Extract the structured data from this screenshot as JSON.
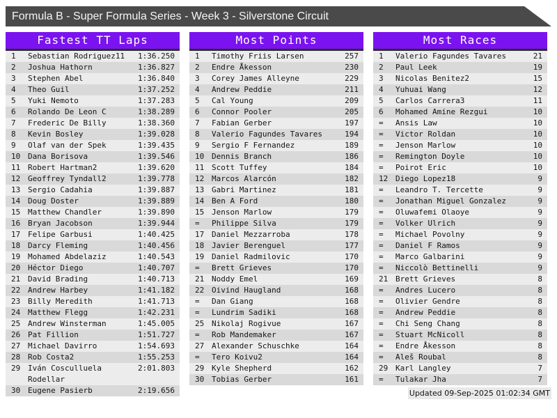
{
  "title_bar": {
    "text": "Formula B - Super Formula Series - Week 3 - Silverstone Circuit"
  },
  "colors": {
    "accent_purple": "#7b13f0",
    "titlebar_gray": "#4a4a4a",
    "header_border": "#2d2d2d",
    "row_light": "#ececec",
    "row_dark": "#d9d9d9"
  },
  "tables": [
    {
      "title": "Fastest TT Laps",
      "rows": [
        {
          "rank": "1",
          "name": "Sebastian Rodriguez11",
          "value": "1:36.250"
        },
        {
          "rank": "2",
          "name": "Joshua Hathorn",
          "value": "1:36.827"
        },
        {
          "rank": "3",
          "name": "Stephen Abel",
          "value": "1:36.840"
        },
        {
          "rank": "4",
          "name": "Theo Guil",
          "value": "1:37.252"
        },
        {
          "rank": "5",
          "name": "Yuki Nemoto",
          "value": "1:37.283"
        },
        {
          "rank": "6",
          "name": "Rolando De Leon C",
          "value": "1:38.289"
        },
        {
          "rank": "7",
          "name": "Frederic De Billy",
          "value": "1:38.360"
        },
        {
          "rank": "8",
          "name": "Kevin Bosley",
          "value": "1:39.028"
        },
        {
          "rank": "9",
          "name": "Olaf van der Spek",
          "value": "1:39.435"
        },
        {
          "rank": "10",
          "name": "Dana Borisova",
          "value": "1:39.546"
        },
        {
          "rank": "11",
          "name": "Robert Hartman2",
          "value": "1:39.620"
        },
        {
          "rank": "12",
          "name": "Geoffrey Tyndall2",
          "value": "1:39.778"
        },
        {
          "rank": "13",
          "name": "Sergio Cadahia",
          "value": "1:39.887"
        },
        {
          "rank": "14",
          "name": "Doug Doster",
          "value": "1:39.889"
        },
        {
          "rank": "15",
          "name": "Matthew Chandler",
          "value": "1:39.890"
        },
        {
          "rank": "16",
          "name": "Bryan Jacobson",
          "value": "1:39.944"
        },
        {
          "rank": "17",
          "name": "Felipe Garbusi",
          "value": "1:40.425"
        },
        {
          "rank": "18",
          "name": "Darcy Fleming",
          "value": "1:40.456"
        },
        {
          "rank": "19",
          "name": "Mohamed Abdelaziz",
          "value": "1:40.543"
        },
        {
          "rank": "20",
          "name": "Héctor Diego",
          "value": "1:40.707"
        },
        {
          "rank": "21",
          "name": "David Brading",
          "value": "1:40.713"
        },
        {
          "rank": "22",
          "name": "Andrew Harbey",
          "value": "1:41.182"
        },
        {
          "rank": "23",
          "name": "Billy Meredith",
          "value": "1:41.713"
        },
        {
          "rank": "24",
          "name": "Matthew Flegg",
          "value": "1:42.231"
        },
        {
          "rank": "25",
          "name": "Andrew Winsterman",
          "value": "1:45.005"
        },
        {
          "rank": "26",
          "name": "Pat Fillion",
          "value": "1:51.727"
        },
        {
          "rank": "27",
          "name": "Michael Davirro",
          "value": "1:54.693"
        },
        {
          "rank": "28",
          "name": "Rob Costa2",
          "value": "1:55.253"
        },
        {
          "rank": "29",
          "name": "Iván Cosculluela Rodellar",
          "value": "2:01.803"
        },
        {
          "rank": "30",
          "name": "Eugene Pasierb",
          "value": "2:19.656"
        }
      ]
    },
    {
      "title": "Most Points",
      "rows": [
        {
          "rank": "1",
          "name": "Timothy Friis Larsen",
          "value": "257"
        },
        {
          "rank": "2",
          "name": "Endre Åkesson",
          "value": "230"
        },
        {
          "rank": "3",
          "name": "Corey James Alleyne",
          "value": "229"
        },
        {
          "rank": "4",
          "name": "Andrew Peddie",
          "value": "211"
        },
        {
          "rank": "5",
          "name": "Cal Young",
          "value": "209"
        },
        {
          "rank": "6",
          "name": "Connor Pooler",
          "value": "205"
        },
        {
          "rank": "7",
          "name": "Fabian Gerber",
          "value": "197"
        },
        {
          "rank": "8",
          "name": "Valerio Fagundes Tavares",
          "value": "194"
        },
        {
          "rank": "9",
          "name": "Sergio F Fernandez",
          "value": "189"
        },
        {
          "rank": "10",
          "name": "Dennis Branch",
          "value": "186"
        },
        {
          "rank": "11",
          "name": "Scott Tuffey",
          "value": "184"
        },
        {
          "rank": "12",
          "name": "Marcos Alarcón",
          "value": "182"
        },
        {
          "rank": "13",
          "name": "Gabri Martinez",
          "value": "181"
        },
        {
          "rank": "14",
          "name": "Ben A Ford",
          "value": "180"
        },
        {
          "rank": "15",
          "name": "Jenson Marlow",
          "value": "179"
        },
        {
          "rank": "=",
          "name": "Philippe Silva",
          "value": "179"
        },
        {
          "rank": "17",
          "name": "Daniel Mezzarroba",
          "value": "178"
        },
        {
          "rank": "18",
          "name": "Javier Berenguel",
          "value": "177"
        },
        {
          "rank": "19",
          "name": "Daniel Radmilovic",
          "value": "170"
        },
        {
          "rank": "=",
          "name": "Brett Grieves",
          "value": "170"
        },
        {
          "rank": "21",
          "name": "Noddy Emel",
          "value": "169"
        },
        {
          "rank": "22",
          "name": "Oivind Haugland",
          "value": "168"
        },
        {
          "rank": "=",
          "name": "Dan Giang",
          "value": "168"
        },
        {
          "rank": "=",
          "name": "Lundrim Sadiki",
          "value": "168"
        },
        {
          "rank": "25",
          "name": "Nikolaj Rogivue",
          "value": "167"
        },
        {
          "rank": "=",
          "name": "Rob Mandemaker",
          "value": "167"
        },
        {
          "rank": "27",
          "name": "Alexander Schuschke",
          "value": "164"
        },
        {
          "rank": "=",
          "name": "Tero Koivu2",
          "value": "164"
        },
        {
          "rank": "29",
          "name": "Kyle Shepherd",
          "value": "162"
        },
        {
          "rank": "30",
          "name": "Tobias Gerber",
          "value": "161"
        }
      ]
    },
    {
      "title": "Most Races",
      "rows": [
        {
          "rank": "1",
          "name": "Valerio Fagundes Tavares",
          "value": "21"
        },
        {
          "rank": "2",
          "name": "Paul Leek",
          "value": "19"
        },
        {
          "rank": "3",
          "name": "Nicolas Benitez2",
          "value": "15"
        },
        {
          "rank": "4",
          "name": "Yuhuai Wang",
          "value": "12"
        },
        {
          "rank": "5",
          "name": "Carlos Carrera3",
          "value": "11"
        },
        {
          "rank": "6",
          "name": "Mohamed Amine Rezgui",
          "value": "10"
        },
        {
          "rank": "=",
          "name": "Ansis Law",
          "value": "10"
        },
        {
          "rank": "=",
          "name": "Victor Roldan",
          "value": "10"
        },
        {
          "rank": "=",
          "name": "Jenson Marlow",
          "value": "10"
        },
        {
          "rank": "=",
          "name": "Remington Doyle",
          "value": "10"
        },
        {
          "rank": "=",
          "name": "Poirot Eric",
          "value": "10"
        },
        {
          "rank": "12",
          "name": "Diego Lopez18",
          "value": "9"
        },
        {
          "rank": "=",
          "name": "Leandro T. Tercette",
          "value": "9"
        },
        {
          "rank": "=",
          "name": "Jonathan Miguel Gonzalez",
          "value": "9"
        },
        {
          "rank": "=",
          "name": "Oluwafemi Olaoye",
          "value": "9"
        },
        {
          "rank": "=",
          "name": "Volker Ulrich",
          "value": "9"
        },
        {
          "rank": "=",
          "name": "Michael Povolny",
          "value": "9"
        },
        {
          "rank": "=",
          "name": "Daniel F Ramos",
          "value": "9"
        },
        {
          "rank": "=",
          "name": "Marco Galbarini",
          "value": "9"
        },
        {
          "rank": "=",
          "name": "Niccolò Bettinelli",
          "value": "9"
        },
        {
          "rank": "21",
          "name": "Brett Grieves",
          "value": "8"
        },
        {
          "rank": "=",
          "name": "Andres Lucero",
          "value": "8"
        },
        {
          "rank": "=",
          "name": "Olivier Gendre",
          "value": "8"
        },
        {
          "rank": "=",
          "name": "Andrew Peddie",
          "value": "8"
        },
        {
          "rank": "=",
          "name": "Chi Seng Chang",
          "value": "8"
        },
        {
          "rank": "=",
          "name": "Stuart McNicoll",
          "value": "8"
        },
        {
          "rank": "=",
          "name": "Endre Åkesson",
          "value": "8"
        },
        {
          "rank": "=",
          "name": "Aleš Roubal",
          "value": "8"
        },
        {
          "rank": "29",
          "name": "Karl Langley",
          "value": "7"
        },
        {
          "rank": "=",
          "name": "Tulakar Jha",
          "value": "7"
        }
      ]
    }
  ],
  "footer": {
    "updated_text": "Updated 09-Sep-2025 01:02:34 GMT"
  }
}
